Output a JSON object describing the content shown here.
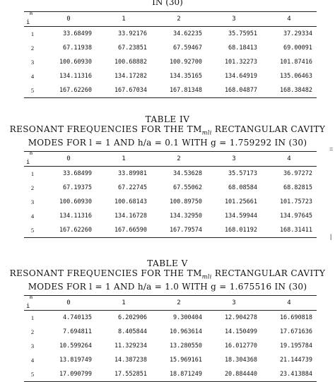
{
  "top_caption_fragment": "IN (30)",
  "tables": [
    {
      "title": "",
      "caption_line1": "",
      "caption_line2": "",
      "col_header_m": "m",
      "row_header_i": "i",
      "columns": [
        "0",
        "1",
        "2",
        "3",
        "4"
      ],
      "rows": [
        {
          "i": "1",
          "values": [
            "33.68499",
            "33.92176",
            "34.62235",
            "35.75951",
            "37.29334"
          ]
        },
        {
          "i": "2",
          "values": [
            "67.11938",
            "67.23851",
            "67.59467",
            "68.18413",
            "69.00091"
          ]
        },
        {
          "i": "3",
          "values": [
            "100.60930",
            "100.68882",
            "100.92700",
            "101.32273",
            "101.87416"
          ]
        },
        {
          "i": "4",
          "values": [
            "134.11316",
            "134.17282",
            "134.35165",
            "134.64919",
            "135.06463"
          ]
        },
        {
          "i": "5",
          "values": [
            "167.62260",
            "167.67034",
            "167.81348",
            "168.04877",
            "168.38482"
          ]
        }
      ]
    },
    {
      "title": "TABLE IV",
      "caption_line1": "RESONANT FREQUENCIES FOR THE TMmli RECTANGULAR CAVITY",
      "caption_line2": "MODES FOR l = 1 AND h/a = 0.1 WITH g = 1.759292 IN (30)",
      "col_header_m": "m",
      "row_header_i": "i",
      "columns": [
        "0",
        "1",
        "2",
        "3",
        "4"
      ],
      "rows": [
        {
          "i": "1",
          "values": [
            "33.68499",
            "33.89981",
            "34.53628",
            "35.57173",
            "36.97272"
          ]
        },
        {
          "i": "2",
          "values": [
            "67.19375",
            "67.22745",
            "67.55062",
            "68.08584",
            "68.82815"
          ]
        },
        {
          "i": "3",
          "values": [
            "100.60930",
            "100.68143",
            "100.89750",
            "101.25661",
            "101.75723"
          ]
        },
        {
          "i": "4",
          "values": [
            "134.11316",
            "134.16728",
            "134.32950",
            "134.59944",
            "134.97645"
          ]
        },
        {
          "i": "5",
          "values": [
            "167.62260",
            "167.66590",
            "167.79574",
            "168.01192",
            "168.31411"
          ]
        }
      ]
    },
    {
      "title": "TABLE V",
      "caption_line1": "RESONANT FREQUENCIES FOR THE TMmli RECTANGULAR CAVITY",
      "caption_line2": "MODES FOR l = 1 AND h/a = 1.0 WITH g = 1.675516 IN (30)",
      "col_header_m": "m",
      "row_header_i": "i",
      "columns": [
        "0",
        "1",
        "2",
        "3",
        "4"
      ],
      "rows": [
        {
          "i": "1",
          "values": [
            "4.740135",
            "6.202906",
            "9.300404",
            "12.904278",
            "16.690818"
          ]
        },
        {
          "i": "2",
          "values": [
            "7.694811",
            "8.405844",
            "10.963614",
            "14.150499",
            "17.671636"
          ]
        },
        {
          "i": "3",
          "values": [
            "10.599264",
            "11.329234",
            "13.280550",
            "16.012770",
            "19.195784"
          ]
        },
        {
          "i": "4",
          "values": [
            "13.819749",
            "14.387238",
            "15.969161",
            "18.304368",
            "21.144739"
          ]
        },
        {
          "i": "5",
          "values": [
            "17.090799",
            "17.552851",
            "18.871249",
            "20.884440",
            "23.413884"
          ]
        }
      ]
    }
  ]
}
